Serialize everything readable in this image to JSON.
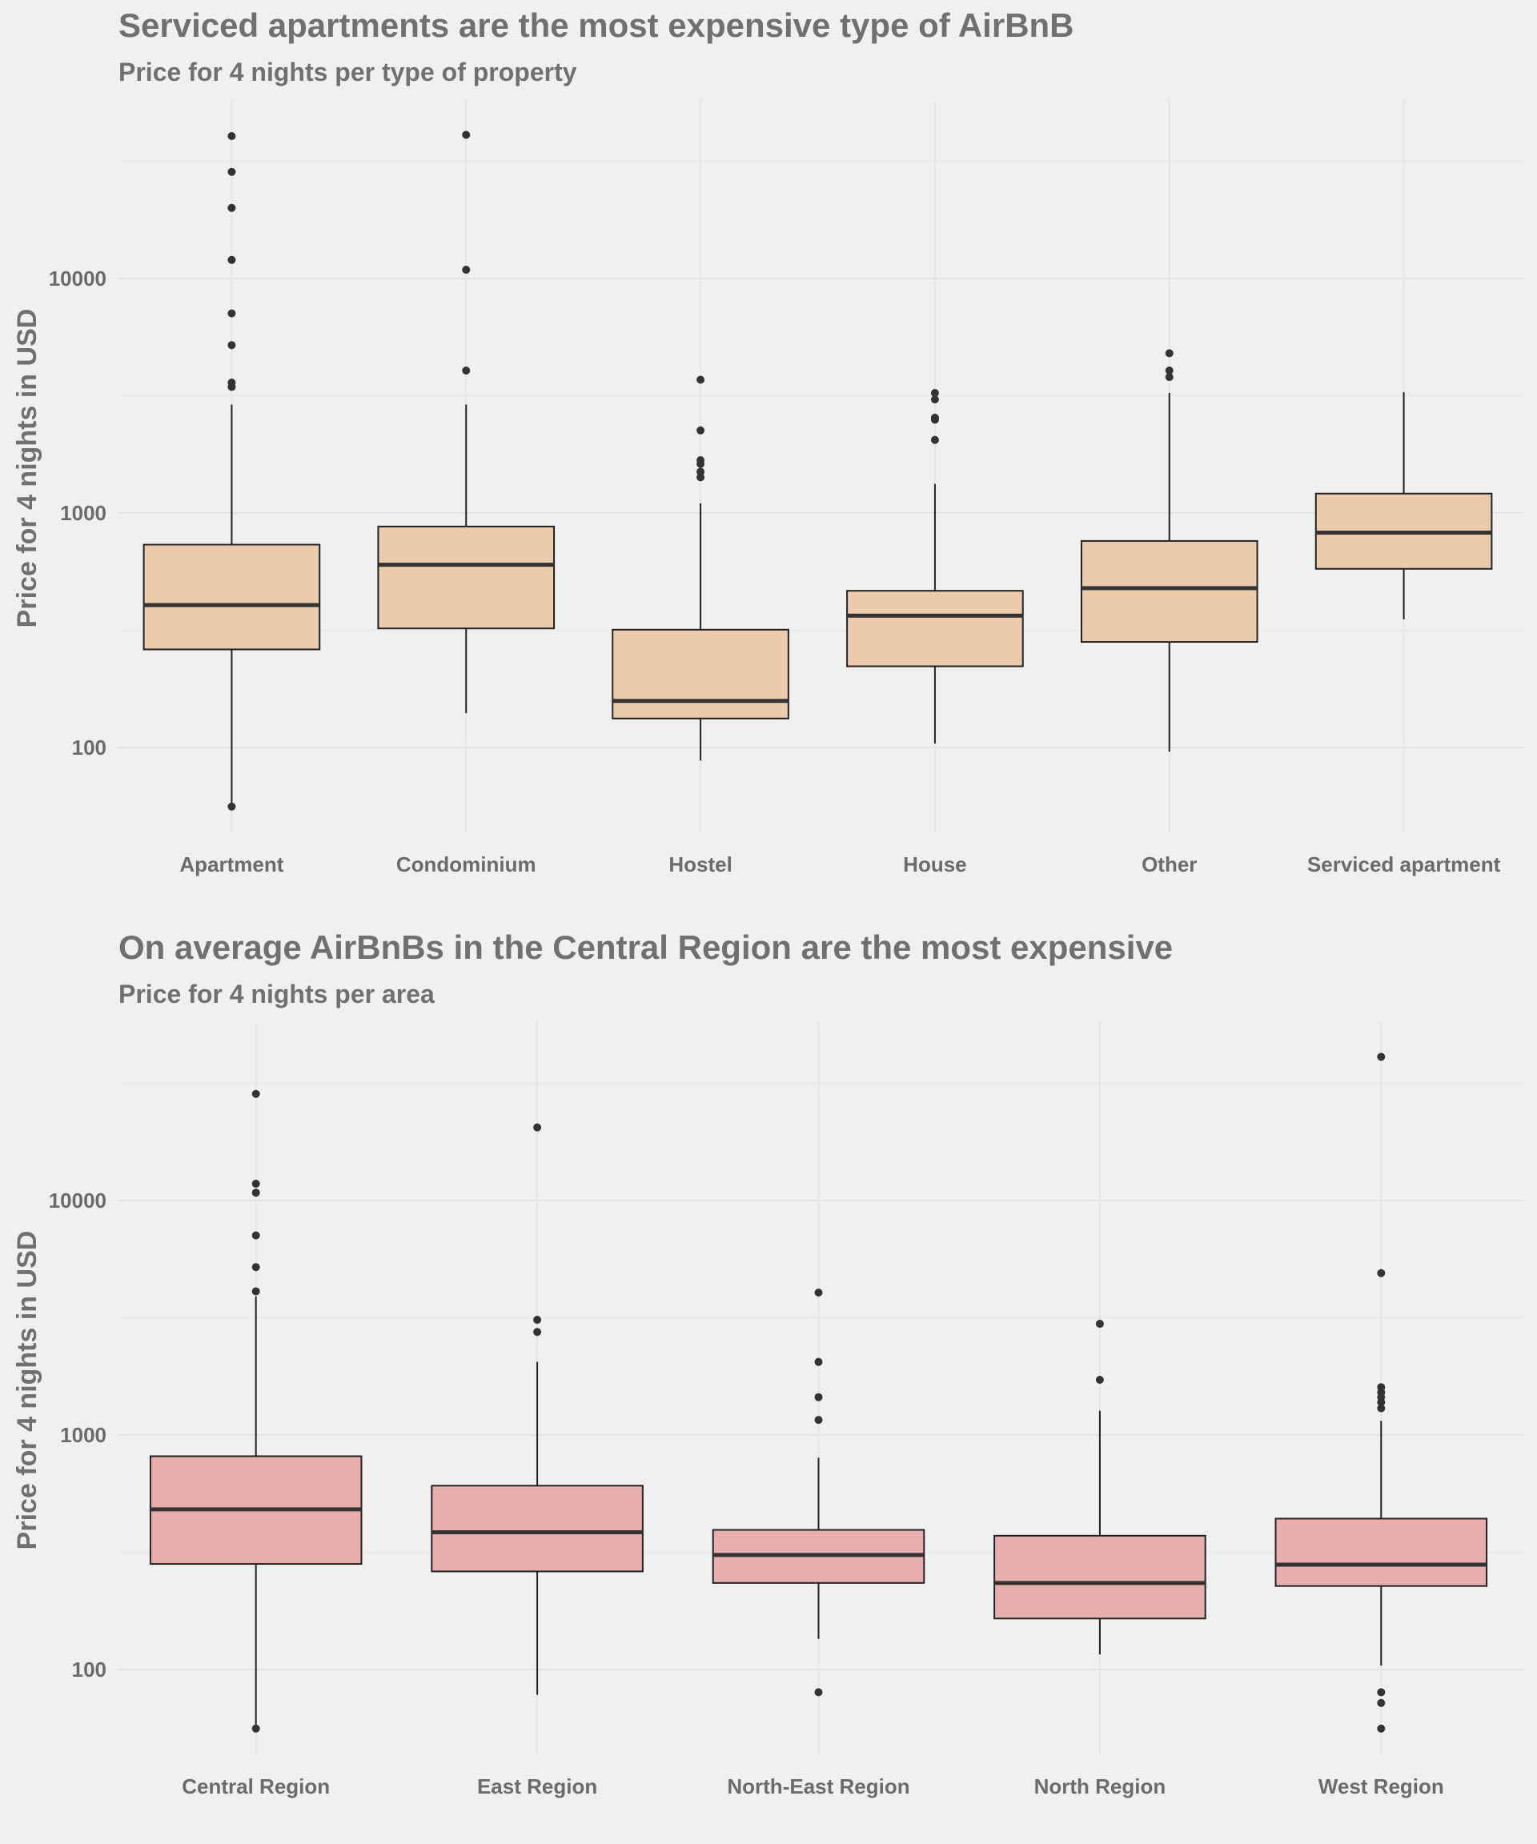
{
  "chart_data": [
    {
      "type": "box",
      "title": "Serviced apartments are the most expensive type of AirBnB",
      "subtitle": "Price for 4 nights per type of property",
      "xlabel": "",
      "ylabel": "Price for 4 nights in USD",
      "yscale": "log10",
      "ylim": [
        45,
        58000
      ],
      "yticks": [
        100,
        1000,
        10000
      ],
      "ytick_labels": [
        "100",
        "1000",
        "10000"
      ],
      "fill_color": "#eccbad",
      "grid": true,
      "legend": "none",
      "categories": [
        "Apartment",
        "Condominium",
        "Hostel",
        "House",
        "Other",
        "Serviced apartment"
      ],
      "boxes": [
        {
          "q1": 262,
          "median": 405,
          "q3": 733,
          "whisker_low": 56,
          "whisker_high": 2900,
          "outliers": [
            56,
            3450,
            3600,
            5200,
            7100,
            12000,
            20000,
            28500,
            40500
          ]
        },
        {
          "q1": 322,
          "median": 602,
          "q3": 876,
          "whisker_low": 140,
          "whisker_high": 2900,
          "outliers": [
            4050,
            10900,
            41000
          ]
        },
        {
          "q1": 133,
          "median": 158,
          "q3": 318,
          "whisker_low": 88,
          "whisker_high": 1100,
          "outliers": [
            1420,
            1500,
            1620,
            1680,
            2250,
            3700
          ]
        },
        {
          "q1": 222,
          "median": 365,
          "q3": 466,
          "whisker_low": 104,
          "whisker_high": 1330,
          "outliers": [
            2050,
            2500,
            2550,
            3050,
            3250
          ]
        },
        {
          "q1": 282,
          "median": 478,
          "q3": 760,
          "whisker_low": 96,
          "whisker_high": 3250,
          "outliers": [
            3800,
            4050,
            4800
          ]
        },
        {
          "q1": 578,
          "median": 825,
          "q3": 1210,
          "whisker_low": 352,
          "whisker_high": 3280,
          "outliers": []
        }
      ]
    },
    {
      "type": "box",
      "title": "On average AirBnBs in the Central Region are the most expensive",
      "subtitle": "Price for 4 nights per area",
      "xlabel": "",
      "ylabel": "Price for 4 nights in USD",
      "yscale": "log10",
      "ylim": [
        45,
        58000
      ],
      "yticks": [
        100,
        1000,
        10000
      ],
      "ytick_labels": [
        "100",
        "1000",
        "10000"
      ],
      "fill_color": "#e8aeae",
      "grid": true,
      "legend": "none",
      "categories": [
        "Central Region",
        "East Region",
        "North-East Region",
        "North Region",
        "West Region"
      ],
      "boxes": [
        {
          "q1": 282,
          "median": 482,
          "q3": 812,
          "whisker_low": 56,
          "whisker_high": 3900,
          "outliers": [
            56,
            4100,
            5200,
            7100,
            10800,
            11800,
            28500
          ]
        },
        {
          "q1": 262,
          "median": 385,
          "q3": 608,
          "whisker_low": 78,
          "whisker_high": 2050,
          "outliers": [
            2750,
            3100,
            20500
          ]
        },
        {
          "q1": 234,
          "median": 308,
          "q3": 394,
          "whisker_low": 135,
          "whisker_high": 800,
          "outliers": [
            80,
            1160,
            1450,
            2050,
            4050
          ]
        },
        {
          "q1": 165,
          "median": 234,
          "q3": 372,
          "whisker_low": 116,
          "whisker_high": 1270,
          "outliers": [
            1720,
            2980
          ]
        },
        {
          "q1": 227,
          "median": 280,
          "q3": 440,
          "whisker_low": 104,
          "whisker_high": 1150,
          "outliers": [
            56,
            72,
            80,
            1300,
            1380,
            1450,
            1520,
            1600,
            4900,
            41000
          ]
        }
      ]
    }
  ]
}
